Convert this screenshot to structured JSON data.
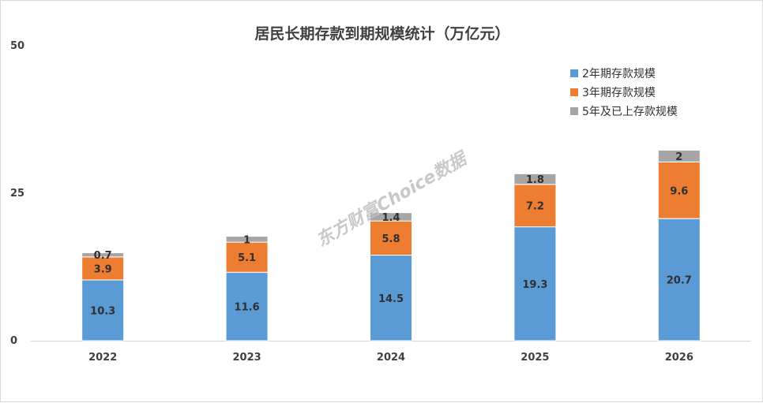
{
  "chart_data": {
    "type": "bar",
    "stacked": true,
    "title": "居民长期存款到期规模统计（万亿元）",
    "categories": [
      "2022",
      "2023",
      "2024",
      "2025",
      "2026"
    ],
    "series": [
      {
        "name": "2年期存款规模",
        "color": "#5b9bd5",
        "values": [
          10.3,
          11.6,
          14.5,
          19.3,
          20.7
        ],
        "labels": [
          "10.3",
          "11.6",
          "14.5",
          "19.3",
          "20.7"
        ]
      },
      {
        "name": "3年期存款规模",
        "color": "#ed7d31",
        "values": [
          3.9,
          5.1,
          5.8,
          7.2,
          9.6
        ],
        "labels": [
          "3.9",
          "5.1",
          "5.8",
          "7.2",
          "9.6"
        ]
      },
      {
        "name": "5年及已上存款规模",
        "color": "#a5a5a5",
        "values": [
          0.7,
          1,
          1.4,
          1.8,
          2
        ],
        "labels": [
          "0.7",
          "1",
          "1.4",
          "1.8",
          "2"
        ]
      }
    ],
    "yticks": [
      "0",
      "25",
      "50"
    ],
    "ylim": [
      0,
      50
    ],
    "grid": false,
    "legend_position": "top-right",
    "watermark": "东方财富Choice数据"
  }
}
